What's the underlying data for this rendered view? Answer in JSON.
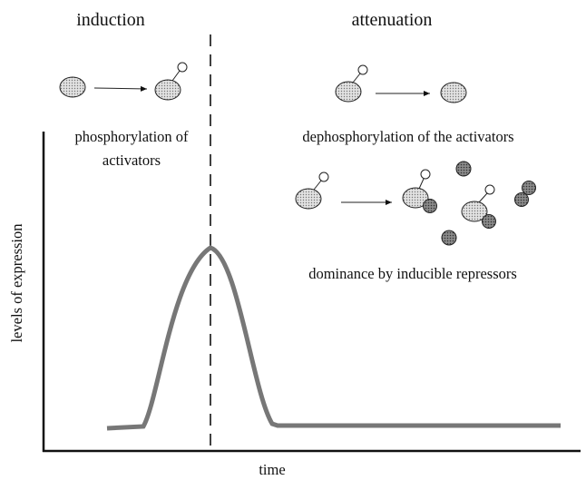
{
  "headings": {
    "left": "induction",
    "right": "attenuation"
  },
  "labels": {
    "phosphorylation": [
      "phosphorylation of",
      "activators"
    ],
    "dephosphorylation": "dephosphorylation of the activators",
    "dominance": "dominance by inducible repressors"
  },
  "axes": {
    "y_label": "levels of expression",
    "x_label": "time"
  }
}
